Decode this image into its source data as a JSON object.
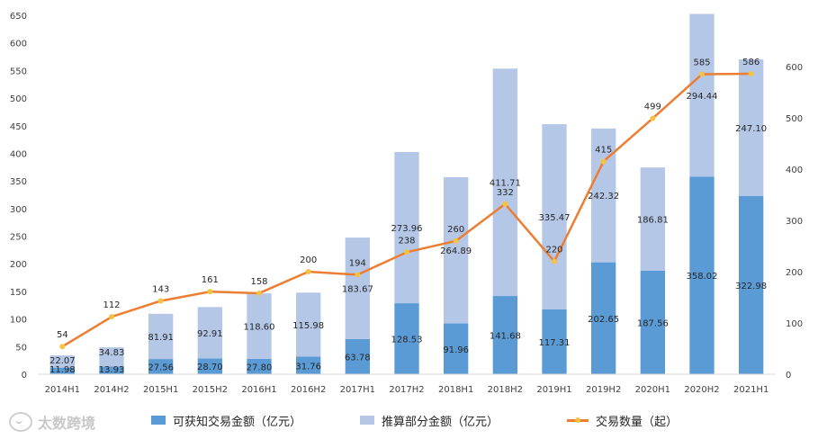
{
  "chart_data": {
    "type": "bar",
    "stacked": true,
    "categories": [
      "2014H1",
      "2014H2",
      "2015H1",
      "2015H2",
      "2016H1",
      "2016H2",
      "2017H1",
      "2017H2",
      "2018H1",
      "2018H2",
      "2019H1",
      "2019H2",
      "2020H1",
      "2020H2",
      "2021H1"
    ],
    "series": [
      {
        "name": "可获知交易金额（亿元）",
        "type": "bar",
        "axis": "left",
        "color": "#5b9bd5",
        "values": [
          11.98,
          13.93,
          27.56,
          28.7,
          27.8,
          31.76,
          63.78,
          128.53,
          91.96,
          141.68,
          117.31,
          202.65,
          187.56,
          358.02,
          322.98
        ]
      },
      {
        "name": "推算部分金额（亿元）",
        "type": "bar",
        "axis": "left",
        "color": "#b4c7e7",
        "values": [
          22.07,
          34.83,
          81.91,
          92.91,
          118.6,
          115.98,
          183.67,
          273.96,
          264.89,
          411.71,
          335.47,
          242.32,
          186.81,
          294.44,
          247.1
        ]
      },
      {
        "name": "交易数量（起）",
        "type": "line",
        "axis": "right",
        "color": "#ed7d31",
        "marker_color": "#f5c242",
        "values": [
          54,
          112,
          143,
          161,
          158,
          200,
          194,
          238,
          260,
          332,
          220,
          415,
          499,
          585,
          586
        ]
      }
    ],
    "y_left": {
      "min": 0,
      "max": 650,
      "step": 50,
      "ticks": [
        "0",
        "50",
        "100",
        "150",
        "200",
        "250",
        "300",
        "350",
        "400",
        "450",
        "500",
        "550",
        "600",
        "650"
      ]
    },
    "y_right": {
      "min": 0,
      "max": 700,
      "step": 100,
      "ticks": [
        "0",
        "100",
        "200",
        "300",
        "400",
        "500",
        "600"
      ]
    },
    "legend_position": "bottom",
    "grid": false
  },
  "legend": {
    "item1": "可获知交易金额（亿元）",
    "item2": "推算部分金额（亿元）",
    "item3": "交易数量（起）"
  },
  "watermark": {
    "text": "太数跨境"
  }
}
